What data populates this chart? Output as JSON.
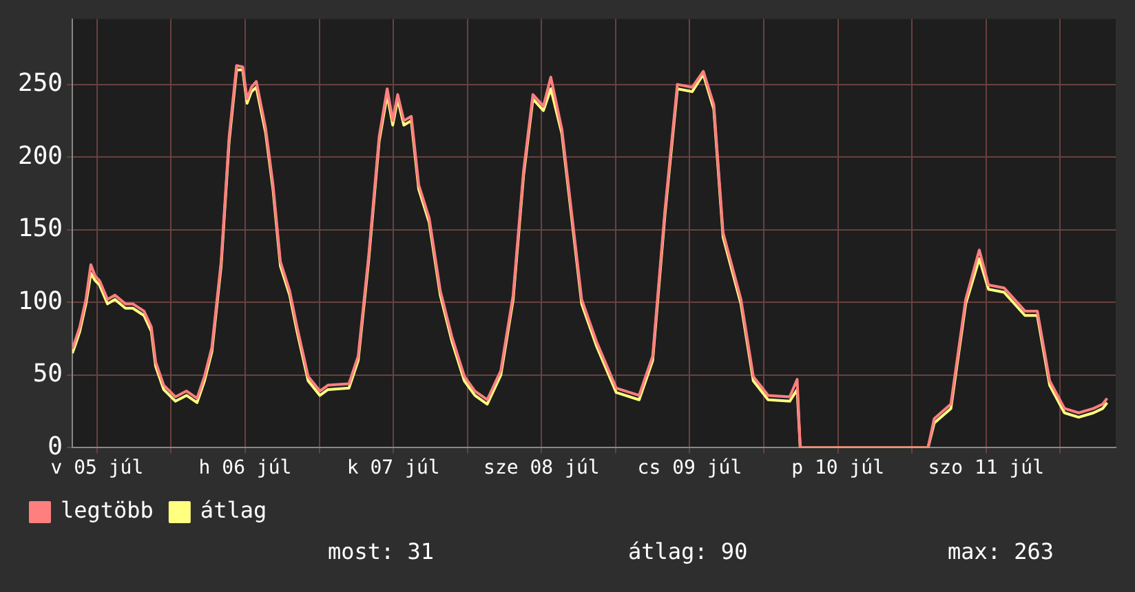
{
  "chart_data": {
    "type": "line",
    "x": [
      "--07-05T08:00",
      "--07-05T08:30",
      "--07-05T09:12",
      "--07-05T10:12",
      "--07-05T11:00",
      "--07-05T11:42",
      "--07-05T12:24",
      "--07-05T13:42",
      "--07-05T14:54",
      "--07-05T16:36",
      "--07-05T17:48",
      "--07-05T19:36",
      "--07-05T20:48",
      "--07-05T21:30",
      "--07-05T22:48",
      "--07-06T00:42",
      "--07-06T02:30",
      "--07-06T04:12",
      "--07-06T05:24",
      "--07-06T06:36",
      "--07-06T08:06",
      "--07-06T09:24",
      "--07-06T10:36",
      "--07-06T11:36",
      "--07-06T12:18",
      "--07-06T13:00",
      "--07-06T13:48",
      "--07-06T15:18",
      "--07-06T16:30",
      "--07-06T17:42",
      "--07-06T19:12",
      "--07-06T20:24",
      "--07-06T22:12",
      "--07-07T00:06",
      "--07-07T01:24",
      "--07-07T04:48",
      "--07-07T06:18",
      "--07-07T08:00",
      "--07-07T09:42",
      "--07-07T11:00",
      "--07-07T11:54",
      "--07-07T12:42",
      "--07-07T13:42",
      "--07-07T14:54",
      "--07-07T16:06",
      "--07-07T17:48",
      "--07-07T19:36",
      "--07-07T21:30",
      "--07-07T23:30",
      "--07-08T01:12",
      "--07-08T03:12",
      "--07-08T05:24",
      "--07-08T07:24",
      "--07-08T09:06",
      "--07-08T10:36",
      "--07-08T12:18",
      "--07-08T13:30",
      "--07-08T15:18",
      "--07-08T18:30",
      "--07-08T20:54",
      "--07-09T00:06",
      "--07-09T03:48",
      "--07-09T06:00",
      "--07-09T08:00",
      "--07-09T10:00",
      "--07-09T12:24",
      "--07-09T14:12",
      "--07-09T15:54",
      "--07-09T17:24",
      "--07-09T20:18",
      "--07-09T22:18",
      "--07-10T00:42",
      "--07-10T04:12",
      "--07-10T05:24",
      "--07-10T05:54",
      "--07-11T02:36",
      "--07-11T03:36",
      "--07-11T06:18",
      "--07-11T08:42",
      "--07-11T10:54",
      "--07-11T12:24",
      "--07-11T14:54",
      "--07-11T18:18",
      "--07-11T20:18",
      "--07-11T22:18",
      "--07-12T00:42",
      "--07-12T03:00",
      "--07-12T05:24",
      "--07-12T06:54",
      "--07-12T07:36"
    ],
    "series": [
      {
        "name": "legtöbb",
        "color": "#ff7f7f",
        "values": [
          68,
          74,
          83,
          102,
          126,
          118,
          115,
          102,
          105,
          99,
          99,
          94,
          83,
          59,
          43,
          35,
          39,
          34,
          49,
          69,
          128,
          214,
          263,
          262,
          240,
          248,
          252,
          220,
          181,
          128,
          108,
          83,
          49,
          39,
          43,
          44,
          63,
          132,
          214,
          247,
          225,
          243,
          225,
          228,
          181,
          158,
          108,
          76,
          49,
          39,
          33,
          53,
          105,
          191,
          243,
          235,
          255,
          219,
          102,
          73,
          41,
          36,
          63,
          164,
          250,
          248,
          259,
          236,
          148,
          102,
          49,
          36,
          35,
          47,
          0,
          0,
          20,
          30,
          102,
          136,
          112,
          110,
          94,
          94,
          46,
          27,
          24,
          27,
          30,
          34
        ]
      },
      {
        "name": "átlag",
        "color": "#ffff80",
        "values": [
          65,
          71,
          80,
          99,
          120,
          115,
          112,
          99,
          102,
          96,
          96,
          91,
          80,
          56,
          40,
          32,
          36,
          31,
          46,
          66,
          125,
          211,
          260,
          260,
          237,
          245,
          248,
          217,
          178,
          125,
          105,
          80,
          46,
          36,
          40,
          41,
          60,
          129,
          211,
          243,
          222,
          240,
          222,
          225,
          178,
          155,
          105,
          73,
          46,
          36,
          30,
          50,
          102,
          188,
          240,
          232,
          247,
          216,
          99,
          70,
          38,
          33,
          60,
          161,
          247,
          245,
          257,
          233,
          145,
          99,
          46,
          33,
          32,
          40,
          0,
          0,
          17,
          27,
          99,
          130,
          109,
          107,
          91,
          91,
          43,
          24,
          21,
          24,
          27,
          31
        ]
      }
    ],
    "xlim": [
      "--07-05T08:00",
      "--07-12T09:00"
    ],
    "xticks": [
      {
        "value": "--07-05T12:00",
        "label": "v 05 júl"
      },
      {
        "value": "--07-06T00:00",
        "label": null
      },
      {
        "value": "--07-06T12:00",
        "label": "h 06 júl"
      },
      {
        "value": "--07-07T00:00",
        "label": null
      },
      {
        "value": "--07-07T12:00",
        "label": "k 07 júl"
      },
      {
        "value": "--07-08T00:00",
        "label": null
      },
      {
        "value": "--07-08T12:00",
        "label": "sze 08 júl"
      },
      {
        "value": "--07-09T00:00",
        "label": null
      },
      {
        "value": "--07-09T12:00",
        "label": "cs 09 júl"
      },
      {
        "value": "--07-10T00:00",
        "label": null
      },
      {
        "value": "--07-10T12:00",
        "label": "p 10 júl"
      },
      {
        "value": "--07-11T00:00",
        "label": null
      },
      {
        "value": "--07-11T12:00",
        "label": "szo 11 júl"
      },
      {
        "value": "--07-12T00:00",
        "label": null
      }
    ],
    "ylim": [
      0,
      295
    ],
    "yticks": [
      0,
      50,
      100,
      150,
      200,
      250
    ],
    "grid": true,
    "legend": "bottom left",
    "marker": "none",
    "line_style": "solid",
    "annotations": [
      "most: 31",
      "átlag: 90",
      "max: 263"
    ]
  }
}
